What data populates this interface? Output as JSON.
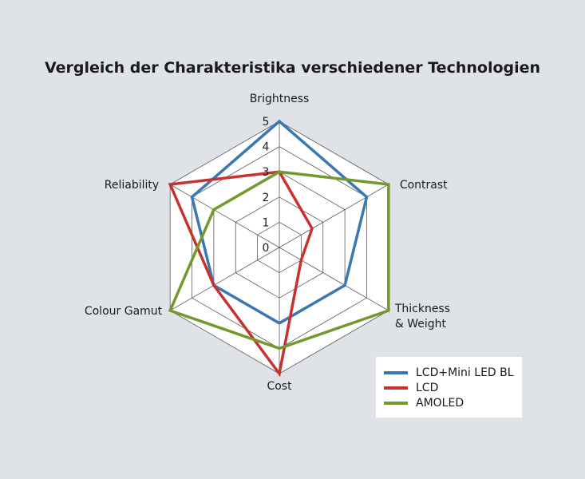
{
  "chart_data": {
    "type": "radar",
    "title": "Vergleich der Charakteristika verschiedener Technologien",
    "axes": [
      "Brightness",
      "Contrast",
      "Thickness\n& Weight",
      "Cost",
      "Colour Gamut",
      "Reliability"
    ],
    "r_ticks": [
      "0",
      "1",
      "2",
      "3",
      "4",
      "5"
    ],
    "r_range": [
      0,
      5
    ],
    "grid": true,
    "legend": "bottom-right",
    "series": [
      {
        "name": "LCD+Mini LED BL",
        "color": "#3a78b4",
        "values": [
          5,
          4,
          3,
          3,
          3,
          4
        ]
      },
      {
        "name": "LCD",
        "color": "#c8322d",
        "values": [
          3,
          1.5,
          1,
          5,
          3,
          5
        ]
      },
      {
        "name": "AMOLED",
        "color": "#73992d",
        "values": [
          3,
          5,
          5,
          4,
          5,
          3
        ]
      }
    ]
  }
}
